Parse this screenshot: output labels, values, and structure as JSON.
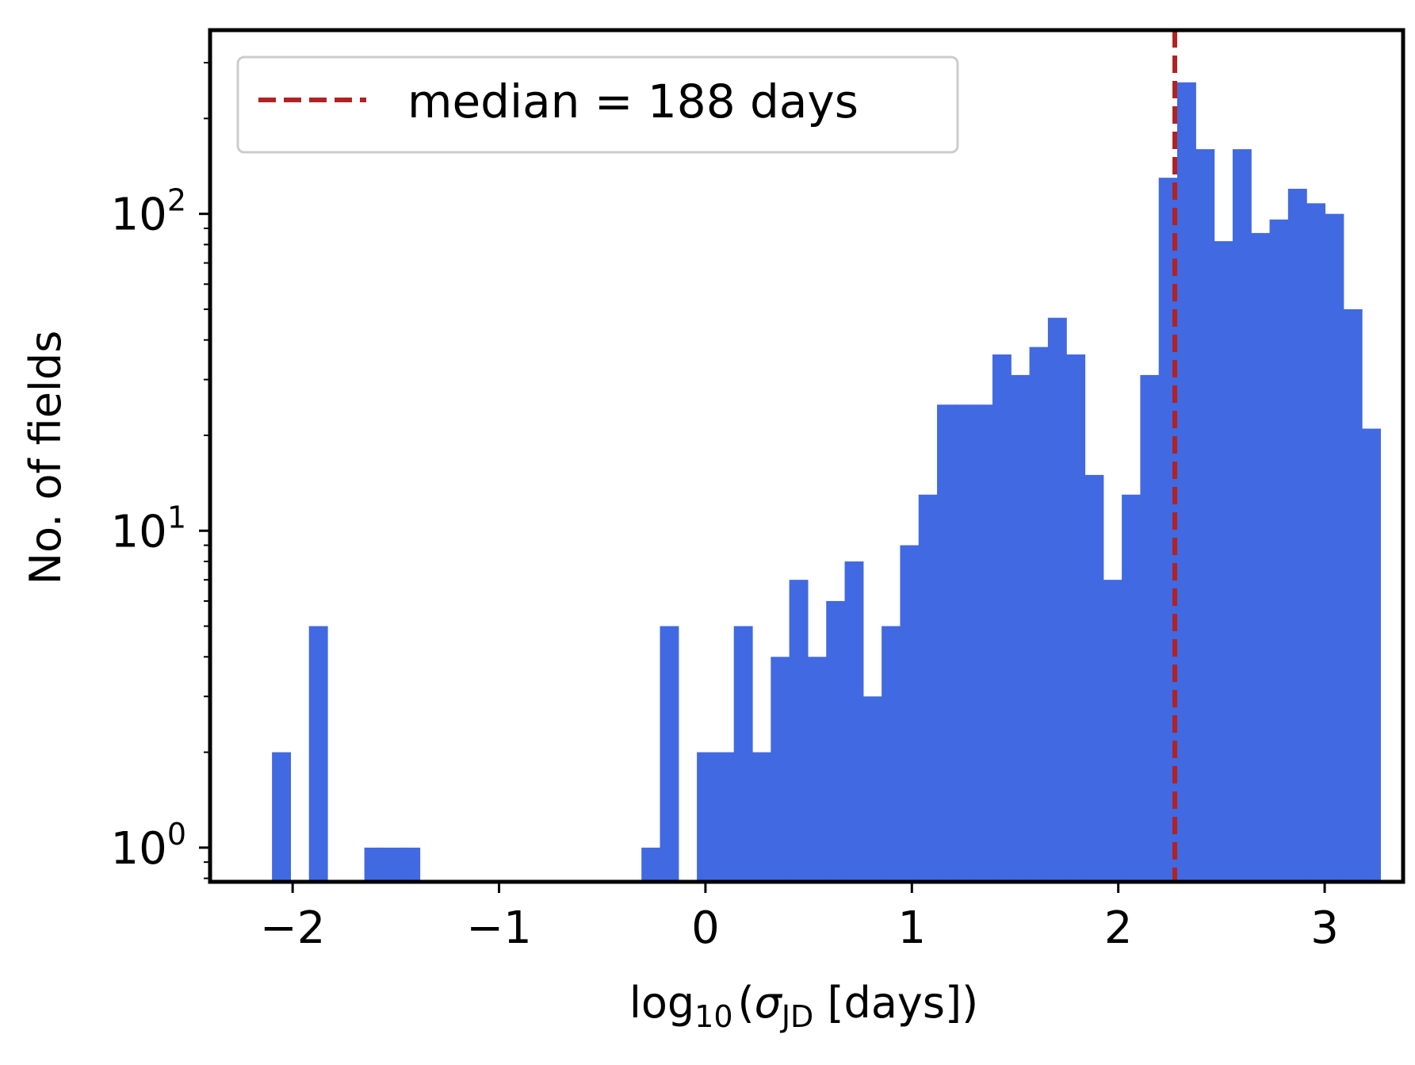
{
  "chart_data": {
    "type": "bar",
    "subtype": "histogram",
    "yscale": "log",
    "xlabel": {
      "prefix": "log",
      "sub": "10",
      "open": "(",
      "sigma": "σ",
      "sigma_sub": "JD",
      "rest": " [days])"
    },
    "ylabel": "No. of fields",
    "xlim": [
      -2.4,
      3.38
    ],
    "ylim": [
      0.78,
      380
    ],
    "x_ticks": [
      {
        "value": -2,
        "label": "−2"
      },
      {
        "value": -1,
        "label": "−1"
      },
      {
        "value": 0,
        "label": "0"
      },
      {
        "value": 1,
        "label": "1"
      },
      {
        "value": 2,
        "label": "2"
      },
      {
        "value": 3,
        "label": "3"
      }
    ],
    "y_ticks": [
      {
        "value": 1,
        "base": "10",
        "exp": "0"
      },
      {
        "value": 10,
        "base": "10",
        "exp": "1"
      },
      {
        "value": 100,
        "base": "10",
        "exp": "2"
      }
    ],
    "bar_color": "#4169e1",
    "median_color": "#b22222",
    "median_value": 2.274,
    "legend": {
      "label": "median = 188 days",
      "location": "upper-left"
    },
    "bin_width": 0.0895,
    "bins_start": -2.1,
    "counts": [
      2,
      0,
      5,
      0,
      0,
      1,
      1,
      1,
      0,
      0,
      0,
      0,
      0,
      0,
      0,
      0,
      0,
      0,
      0,
      0,
      1,
      5,
      0,
      2,
      2,
      5,
      2,
      4,
      7,
      4,
      6,
      8,
      3,
      5,
      9,
      13,
      25,
      25,
      25,
      36,
      31,
      38,
      47,
      36,
      15,
      7,
      13,
      31,
      130,
      260,
      160,
      82,
      160,
      87,
      96,
      120,
      108,
      100,
      50,
      21
    ]
  }
}
